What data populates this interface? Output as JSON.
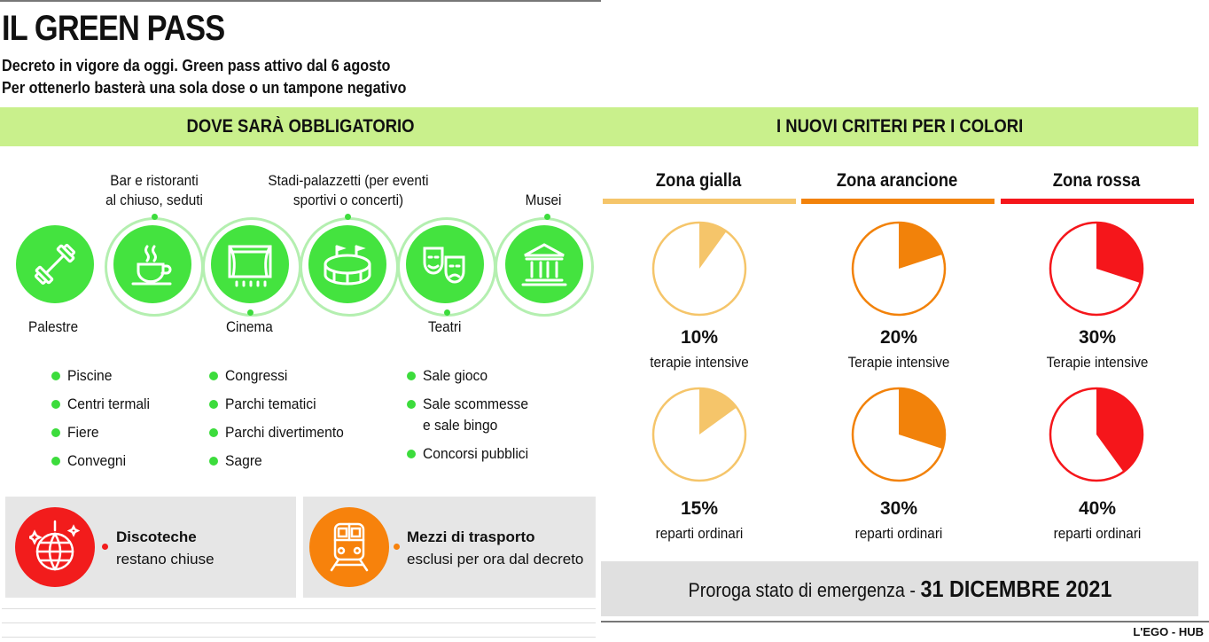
{
  "title": "IL GREEN PASS",
  "subtitle_line1": "Decreto in vigore da oggi. Green pass attivo dal 6 agosto",
  "subtitle_line2": "Per ottenerlo basterà una sola dose o un tampone negativo",
  "left_header": "DOVE SARÀ OBBLIGATORIO",
  "right_header": "I NUOVI CRITERI PER I COLORI",
  "venues": {
    "palestre": "Palestre",
    "bar_line1": "Bar e ristoranti",
    "bar_line2": "al chiuso, seduti",
    "cinema": "Cinema",
    "stadi_line1": "Stadi-palazzetti (per eventi",
    "stadi_line2": "sportivi o concerti)",
    "teatri": "Teatri",
    "musei": "Musei"
  },
  "list_col1": [
    "Piscine",
    "Centri termali",
    "Fiere",
    "Convegni"
  ],
  "list_col2": [
    "Congressi",
    "Parchi tematici",
    "Parchi divertimento",
    "Sagre"
  ],
  "list_col3": [
    "Sale gioco",
    "Sale scommesse",
    "e sale bingo",
    "Concorsi pubblici"
  ],
  "discoteche": {
    "title": "Discoteche",
    "text": "restano chiuse",
    "color": "#f21c1c"
  },
  "trasporti": {
    "title": "Mezzi di trasporto",
    "text": "esclusi per ora dal decreto",
    "color": "#f7820c"
  },
  "icons": {
    "palestre": "dumbbell-icon",
    "bar": "coffee-cup-icon",
    "cinema": "cinema-stage-icon",
    "stadi": "stadium-icon",
    "teatri": "theatre-masks-icon",
    "musei": "museum-icon",
    "discoteche": "disco-ball-icon",
    "trasporti": "train-icon"
  },
  "zones": [
    {
      "name": "Zona gialla",
      "color": "#f5c56a",
      "intensive_pct": 10,
      "intensive_label": "10%",
      "intensive_caption": "terapie intensive",
      "ordinary_pct": 15,
      "ordinary_label": "15%",
      "ordinary_caption": "reparti ordinari"
    },
    {
      "name": "Zona arancione",
      "color": "#f2820a",
      "intensive_pct": 20,
      "intensive_label": "20%",
      "intensive_caption": "Terapie intensive",
      "ordinary_pct": 30,
      "ordinary_label": "30%",
      "ordinary_caption": "reparti ordinari"
    },
    {
      "name": "Zona rossa",
      "color": "#f5161b",
      "intensive_pct": 30,
      "intensive_label": "30%",
      "intensive_caption": "Terapie intensive",
      "ordinary_pct": 40,
      "ordinary_label": "40%",
      "ordinary_caption": "reparti ordinari"
    }
  ],
  "proroga_text": "Proroga stato di emergenza - ",
  "proroga_date": "31 DICEMBRE 2021",
  "credit": "L'EGO - HUB",
  "colors": {
    "band": "#c9f08c",
    "green": "#44e33f",
    "ring": "#b4efb0"
  }
}
